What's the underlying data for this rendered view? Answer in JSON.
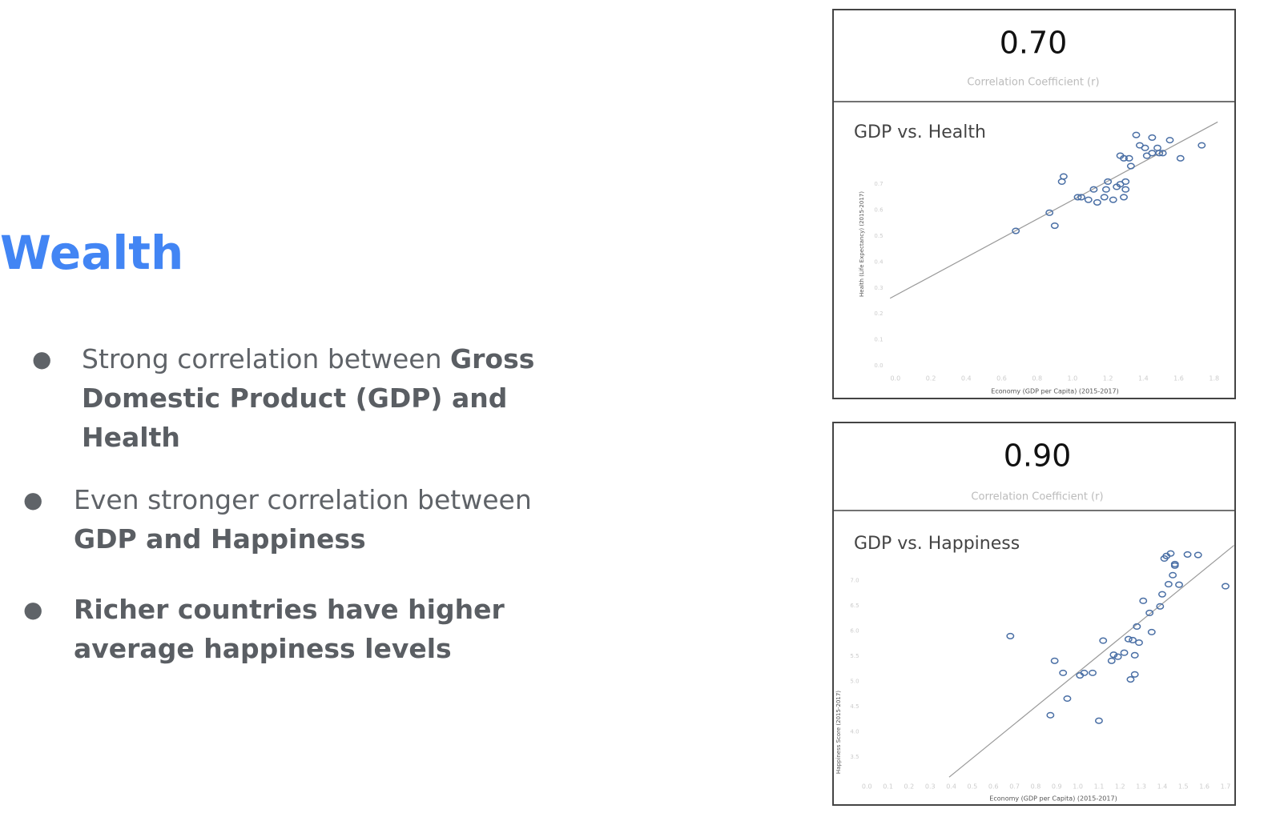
{
  "slide": {
    "title": "Wealth",
    "bullets": [
      [
        {
          "text": "Strong correlation between ",
          "bold": false
        },
        {
          "text": "Gross Domestic Product (GDP) and Health",
          "bold": true
        }
      ],
      [
        {
          "text": "Even stronger correlation between ",
          "bold": false
        },
        {
          "text": "GDP and Happiness",
          "bold": true
        }
      ],
      [
        {
          "text": "Richer countries have higher average happiness levels",
          "bold": true
        }
      ]
    ]
  },
  "chart_data": [
    {
      "type": "scatter",
      "stat_value": "0.70",
      "stat_label": "Correlation Coefficient (r)",
      "title": "GDP vs. Health",
      "x_label": "Economy (GDP per Capita) (2015-2017)",
      "y_label": "Health (Life Expectancy) (2015-2017)",
      "color": "#4a6fa5",
      "x": [
        0.68,
        0.9,
        0.87,
        0.94,
        0.95,
        1.03,
        1.05,
        1.09,
        1.12,
        1.14,
        1.18,
        1.19,
        1.2,
        1.23,
        1.25,
        1.27,
        1.29,
        1.3,
        1.3,
        1.27,
        1.29,
        1.32,
        1.33,
        1.36,
        1.38,
        1.41,
        1.42,
        1.45,
        1.45,
        1.48,
        1.49,
        1.51,
        1.55,
        1.61,
        1.73
      ],
      "y": [
        0.52,
        0.54,
        0.59,
        0.71,
        0.73,
        0.65,
        0.65,
        0.64,
        0.68,
        0.63,
        0.65,
        0.68,
        0.71,
        0.64,
        0.69,
        0.7,
        0.65,
        0.68,
        0.71,
        0.81,
        0.8,
        0.8,
        0.77,
        0.89,
        0.85,
        0.84,
        0.81,
        0.88,
        0.82,
        0.84,
        0.82,
        0.82,
        0.87,
        0.8,
        0.85
      ],
      "trend_x": [
        -0.03,
        1.82
      ],
      "trend_y": [
        0.26,
        0.94
      ],
      "xlim": [
        -0.04,
        1.84
      ],
      "ylim": [
        0,
        0.98
      ],
      "xticks": [
        {
          "value": 0,
          "label": "0.0"
        },
        0.2,
        0.4,
        0.6,
        0.8,
        {
          "value": 1,
          "label": "1.0"
        },
        1.2,
        1.4,
        1.6,
        1.8
      ],
      "yticks": [
        {
          "value": 0,
          "label": "0.0"
        },
        0.1,
        0.2,
        0.3,
        0.4,
        0.5,
        0.6,
        0.7
      ]
    },
    {
      "type": "scatter",
      "stat_value": "0.90",
      "stat_label": "Correlation Coefficient (r)",
      "title": "GDP vs. Happiness",
      "x_label": "Economy (GDP per Capita) (2015-2017)",
      "y_label": "Happiness Score (2015-2017)",
      "color": "#4a6fa5",
      "x": [
        0.68,
        0.87,
        0.89,
        0.93,
        0.95,
        1.01,
        1.03,
        1.07,
        1.1,
        1.12,
        1.16,
        1.17,
        1.19,
        1.22,
        1.24,
        1.25,
        1.26,
        1.27,
        1.27,
        1.28,
        1.29,
        1.31,
        1.34,
        1.35,
        1.39,
        1.4,
        1.43,
        1.45,
        1.46,
        1.46,
        1.48,
        1.41,
        1.42,
        1.44,
        1.52,
        1.57,
        1.7
      ],
      "y": [
        5.9,
        4.33,
        5.41,
        5.17,
        4.66,
        5.12,
        5.17,
        5.17,
        4.22,
        5.81,
        5.41,
        5.53,
        5.49,
        5.57,
        5.84,
        5.04,
        5.82,
        5.14,
        5.52,
        6.09,
        5.77,
        6.6,
        6.36,
        5.98,
        6.49,
        6.73,
        6.93,
        7.11,
        7.3,
        7.33,
        6.92,
        7.44,
        7.49,
        7.54,
        7.52,
        7.51,
        6.89
      ],
      "trend_x": [
        0.39,
        1.74
      ],
      "trend_y": [
        3.1,
        7.7
      ],
      "xlim": [
        -0.13,
        1.74
      ],
      "ylim": [
        3.0,
        7.9
      ],
      "xticks": [
        {
          "value": 0,
          "label": "0.0"
        },
        0.1,
        0.2,
        0.3,
        0.4,
        0.5,
        0.6,
        0.7,
        0.8,
        0.9,
        {
          "value": 1,
          "label": "1.0"
        },
        1.1,
        1.2,
        1.3,
        1.4,
        1.5,
        1.6,
        1.7
      ],
      "yticks": [
        3.5,
        {
          "value": 4,
          "label": "4.0"
        },
        4.5,
        {
          "value": 5,
          "label": "5.0"
        },
        5.5,
        {
          "value": 6,
          "label": "6.0"
        },
        6.5,
        {
          "value": 7,
          "label": "7.0"
        }
      ]
    }
  ]
}
